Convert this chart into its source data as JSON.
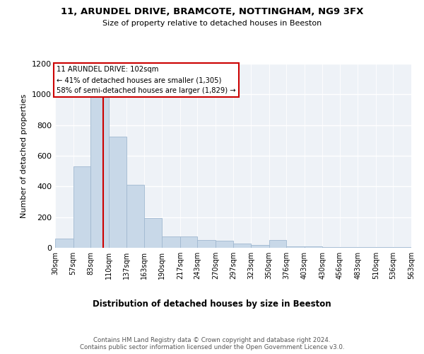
{
  "title_line1": "11, ARUNDEL DRIVE, BRAMCOTE, NOTTINGHAM, NG9 3FX",
  "title_line2": "Size of property relative to detached houses in Beeston",
  "xlabel": "Distribution of detached houses by size in Beeston",
  "ylabel": "Number of detached properties",
  "bar_color": "#c8d8e8",
  "bar_edge_color": "#a0b8d0",
  "vline_x": 102,
  "vline_color": "#cc0000",
  "annotation_text": "11 ARUNDEL DRIVE: 102sqm\n← 41% of detached houses are smaller (1,305)\n58% of semi-detached houses are larger (1,829) →",
  "annotation_box_color": "#cc0000",
  "bin_edges": [
    30,
    57,
    83,
    110,
    137,
    163,
    190,
    217,
    243,
    270,
    297,
    323,
    350,
    376,
    403,
    430,
    456,
    483,
    510,
    536,
    563
  ],
  "bar_heights": [
    60,
    530,
    1000,
    725,
    410,
    195,
    75,
    75,
    50,
    45,
    30,
    20,
    50,
    10,
    10,
    5,
    5,
    5,
    5,
    5
  ],
  "ylim": [
    0,
    1200
  ],
  "yticks": [
    0,
    200,
    400,
    600,
    800,
    1000,
    1200
  ],
  "plot_bg_color": "#eef2f7",
  "footer_text": "Contains HM Land Registry data © Crown copyright and database right 2024.\nContains public sector information licensed under the Open Government Licence v3.0.",
  "tick_labels": [
    "30sqm",
    "57sqm",
    "83sqm",
    "110sqm",
    "137sqm",
    "163sqm",
    "190sqm",
    "217sqm",
    "243sqm",
    "270sqm",
    "297sqm",
    "323sqm",
    "350sqm",
    "376sqm",
    "403sqm",
    "430sqm",
    "456sqm",
    "483sqm",
    "510sqm",
    "536sqm",
    "563sqm"
  ]
}
